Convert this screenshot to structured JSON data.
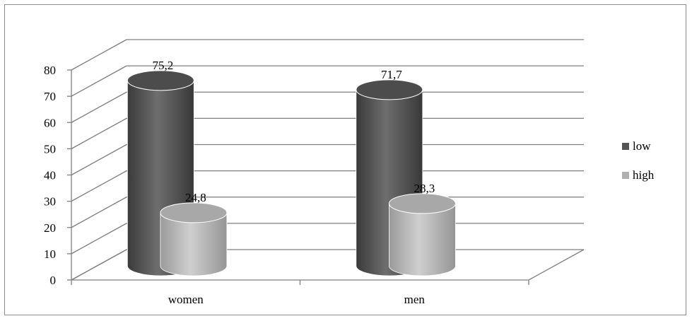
{
  "chart_data": {
    "type": "bar",
    "style": "3d-cylinder",
    "categories": [
      "women",
      "men"
    ],
    "series": [
      {
        "name": "low",
        "values": [
          75.2,
          71.7
        ],
        "value_labels": [
          "75,2",
          "71,7"
        ],
        "color": "#555555"
      },
      {
        "name": "high",
        "values": [
          24.8,
          28.3
        ],
        "value_labels": [
          "24,8",
          "28,3"
        ],
        "color": "#b0b0b0"
      }
    ],
    "ylim": [
      0,
      80
    ],
    "yticks": [
      0,
      10,
      20,
      30,
      40,
      50,
      60,
      70,
      80
    ],
    "title": "",
    "xlabel": "",
    "ylabel": "",
    "grid": true,
    "legend": "right"
  }
}
